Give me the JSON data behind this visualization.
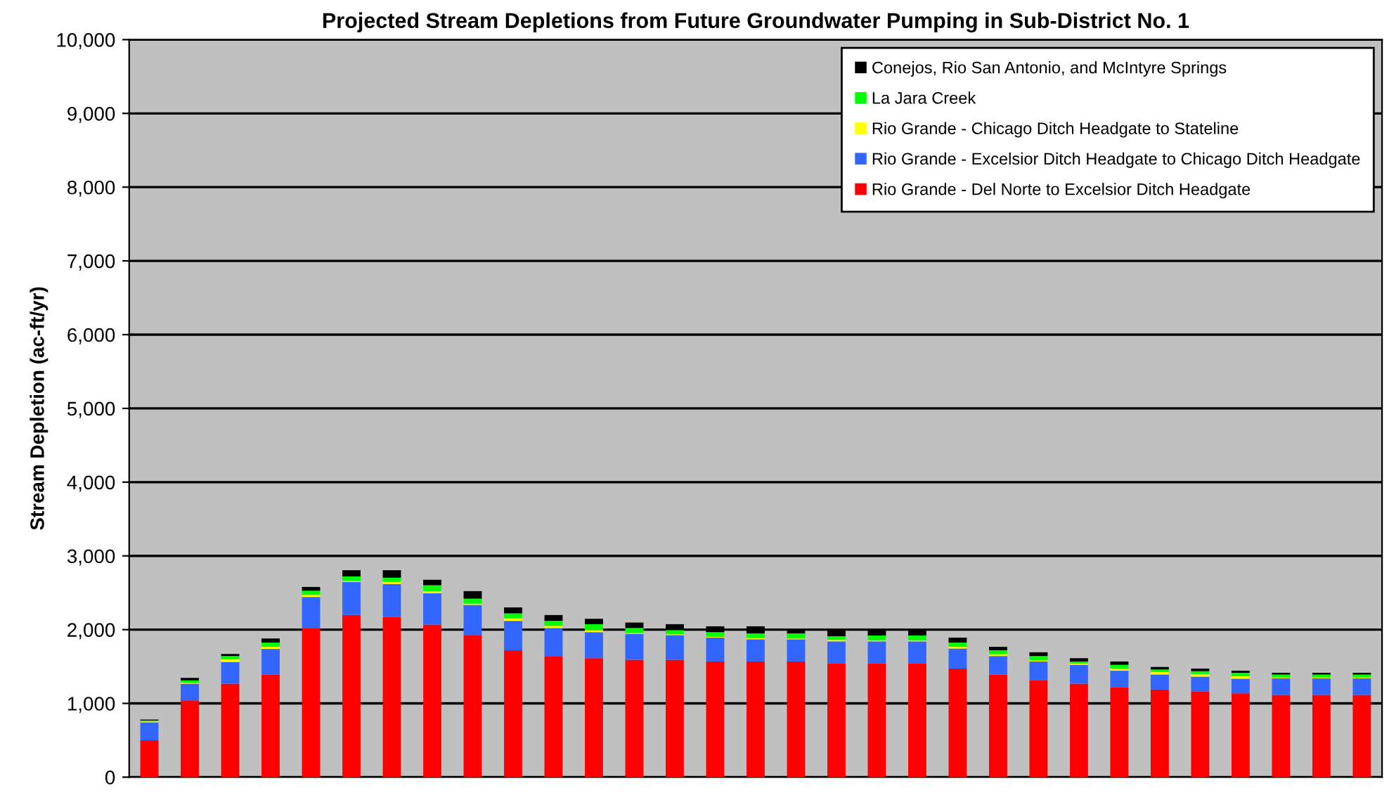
{
  "chart_data": {
    "type": "bar",
    "stacked": true,
    "title": "Projected Stream Depletions from Future Groundwater Pumping in Sub-District No. 1",
    "ylabel": "Stream Depletion (ac-ft/yr)",
    "categories": [
      null,
      null,
      null,
      null,
      null,
      null,
      null,
      null,
      null,
      null,
      null,
      null,
      null,
      null,
      null,
      null,
      null,
      null,
      null,
      null,
      null,
      null,
      null,
      null,
      null,
      null,
      null,
      null,
      null,
      null,
      null
    ],
    "series": [
      {
        "name": "Rio Grande - Del Norte to Excelsior Ditch Headgate",
        "color": "#ff0000",
        "values": [
          500,
          1040,
          1267,
          1392,
          2022,
          2199,
          2170,
          2068,
          1920,
          1721,
          1642,
          1613,
          1591,
          1591,
          1568,
          1568,
          1568,
          1540,
          1540,
          1540,
          1472,
          1392,
          1312,
          1267,
          1216,
          1187,
          1159,
          1136,
          1114,
          1114,
          1114
        ]
      },
      {
        "name": "Rio Grande - Excelsior Ditch Headgate to Chicago Ditch Headgate",
        "color": "#3366ff",
        "values": [
          244,
          227,
          295,
          346,
          421,
          448,
          449,
          426,
          415,
          398,
          380,
          353,
          352,
          335,
          324,
          301,
          301,
          301,
          301,
          301,
          272,
          250,
          256,
          256,
          227,
          205,
          204,
          199,
          227,
          227,
          227
        ]
      },
      {
        "name": "Rio Grande - Chicago Ditch Headgate to Stateline",
        "color": "#ffff00",
        "values": [
          10,
          15,
          35,
          29,
          28,
          12,
          28,
          28,
          17,
          34,
          29,
          28,
          11,
          11,
          11,
          20,
          11,
          20,
          15,
          15,
          23,
          25,
          17,
          17,
          29,
          34,
          35,
          34,
          10,
          10,
          10
        ]
      },
      {
        "name": "La Jara Creek",
        "color": "#00ff00",
        "values": [
          15,
          30,
          45,
          57,
          57,
          62,
          57,
          80,
          68,
          68,
          68,
          80,
          68,
          57,
          63,
          60,
          69,
          50,
          64,
          64,
          57,
          54,
          57,
          28,
          51,
          34,
          39,
          46,
          41,
          41,
          41
        ]
      },
      {
        "name": "Conejos, Rio San Antonio, and McIntyre Springs",
        "color": "#000000",
        "values": [
          12,
          34,
          28,
          56,
          51,
          85,
          102,
          74,
          102,
          80,
          79,
          73,
          74,
          80,
          79,
          96,
          56,
          94,
          85,
          85,
          68,
          46,
          51,
          45,
          45,
          34,
          35,
          28,
          23,
          23,
          23
        ]
      }
    ],
    "ylim": [
      0,
      10000
    ],
    "yticks": [
      {
        "value": 0,
        "label": "0"
      },
      {
        "value": 1000,
        "label": "1,000"
      },
      {
        "value": 2000,
        "label": "2,000"
      },
      {
        "value": 3000,
        "label": "3,000"
      },
      {
        "value": 4000,
        "label": "4,000"
      },
      {
        "value": 5000,
        "label": "5,000"
      },
      {
        "value": 6000,
        "label": "6,000"
      },
      {
        "value": 7000,
        "label": "7,000"
      },
      {
        "value": 8000,
        "label": "8,000"
      },
      {
        "value": 9000,
        "label": "9,000"
      },
      {
        "value": 10000,
        "label": "10,000"
      }
    ],
    "grid": "y",
    "legend": "top right",
    "tick_labels": "y"
  }
}
